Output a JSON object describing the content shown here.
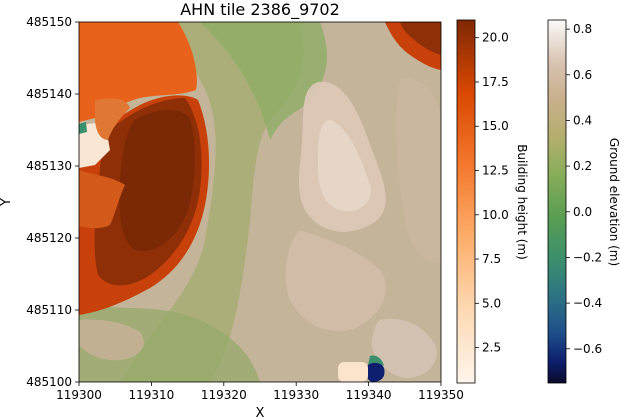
{
  "chart_data": {
    "type": "heatmap",
    "title": "AHN tile 2386_9702",
    "xlabel": "X",
    "ylabel": "Y",
    "xlim": [
      119300,
      119350
    ],
    "ylim": [
      485100,
      485150
    ],
    "x_ticks": [
      {
        "value": 119300,
        "label": "119300"
      },
      {
        "value": 119310,
        "label": "119310"
      },
      {
        "value": 119320,
        "label": "119320"
      },
      {
        "value": 119330,
        "label": "119330"
      },
      {
        "value": 119340,
        "label": "119340"
      },
      {
        "value": 119350,
        "label": "119350"
      }
    ],
    "y_ticks": [
      {
        "value": 485100,
        "label": "485100"
      },
      {
        "value": 485110,
        "label": "485110"
      },
      {
        "value": 485120,
        "label": "485120"
      },
      {
        "value": 485130,
        "label": "485130"
      },
      {
        "value": 485140,
        "label": "485140"
      },
      {
        "value": 485150,
        "label": "485150"
      }
    ],
    "layers": [
      {
        "role": "ground",
        "colorbar_label": "Ground elevation (m)",
        "range": [
          -0.75,
          0.84
        ],
        "colormap": "gist_earth",
        "ticks": [
          {
            "value": -0.6,
            "label": "−0.6"
          },
          {
            "value": -0.4,
            "label": "−0.4"
          },
          {
            "value": -0.2,
            "label": "−0.2"
          },
          {
            "value": 0.0,
            "label": "0.0"
          },
          {
            "value": 0.2,
            "label": "0.2"
          },
          {
            "value": 0.4,
            "label": "0.4"
          },
          {
            "value": 0.6,
            "label": "0.6"
          },
          {
            "value": 0.8,
            "label": "0.8"
          }
        ]
      },
      {
        "role": "buildings",
        "colorbar_label": "Building height (m)",
        "range": [
          0.5,
          21
        ],
        "colormap": "Oranges",
        "ticks": [
          {
            "value": 2.5,
            "label": "2.5"
          },
          {
            "value": 5.0,
            "label": "5.0"
          },
          {
            "value": 7.5,
            "label": "7.5"
          },
          {
            "value": 10.0,
            "label": "10.0"
          },
          {
            "value": 12.5,
            "label": "12.5"
          },
          {
            "value": 15.0,
            "label": "15.0"
          },
          {
            "value": 17.5,
            "label": "17.5"
          },
          {
            "value": 20.0,
            "label": "20.0"
          }
        ]
      }
    ],
    "grid": false
  }
}
